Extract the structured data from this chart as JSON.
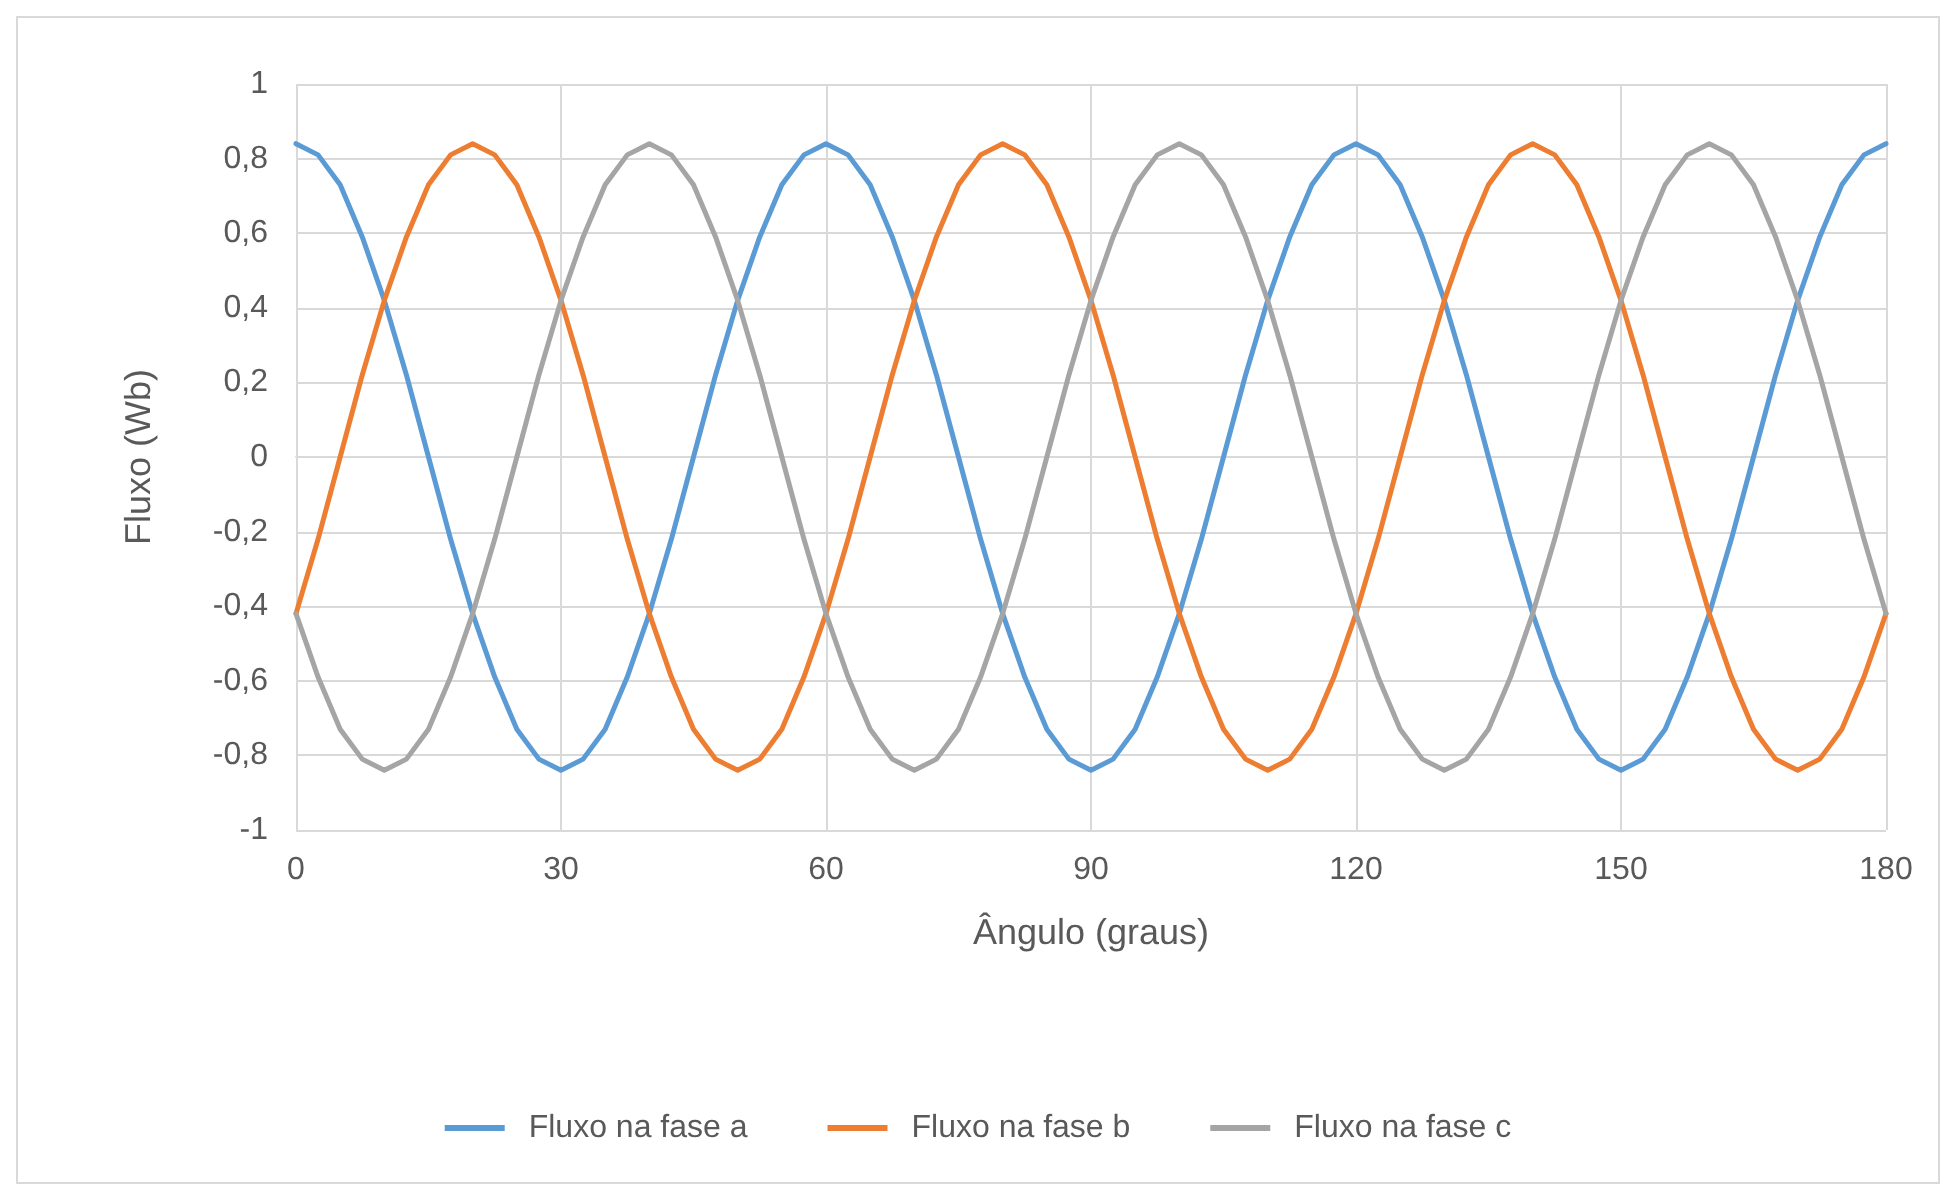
{
  "chart_data": {
    "type": "line",
    "xlabel": "Ângulo (graus)",
    "ylabel": "Fluxo (Wb)",
    "x": [
      0,
      2.5,
      5,
      7.5,
      10,
      12.5,
      15,
      17.5,
      20,
      22.5,
      25,
      27.5,
      30,
      32.5,
      35,
      37.5,
      40,
      42.5,
      45,
      47.5,
      50,
      52.5,
      55,
      57.5,
      60,
      62.5,
      65,
      67.5,
      70,
      72.5,
      75,
      77.5,
      80,
      82.5,
      85,
      87.5,
      90,
      92.5,
      95,
      97.5,
      100,
      102.5,
      105,
      107.5,
      110,
      112.5,
      115,
      117.5,
      120,
      122.5,
      125,
      127.5,
      130,
      132.5,
      135,
      137.5,
      140,
      142.5,
      145,
      147.5,
      150,
      152.5,
      155,
      157.5,
      160,
      162.5,
      165,
      167.5,
      170,
      172.5,
      175,
      177.5,
      180
    ],
    "series": [
      {
        "name": "Fluxo na fase a",
        "color": "#5b9bd5",
        "values": [
          0.84,
          0.81,
          0.73,
          0.59,
          0.42,
          0.22,
          0,
          -0.22,
          -0.42,
          -0.59,
          -0.73,
          -0.81,
          -0.84,
          -0.81,
          -0.73,
          -0.59,
          -0.42,
          -0.22,
          0,
          0.22,
          0.42,
          0.59,
          0.73,
          0.81,
          0.84,
          0.81,
          0.73,
          0.59,
          0.42,
          0.22,
          0,
          -0.22,
          -0.42,
          -0.59,
          -0.73,
          -0.81,
          -0.84,
          -0.81,
          -0.73,
          -0.59,
          -0.42,
          -0.22,
          0,
          0.22,
          0.42,
          0.59,
          0.73,
          0.81,
          0.84,
          0.81,
          0.73,
          0.59,
          0.42,
          0.22,
          0,
          -0.22,
          -0.42,
          -0.59,
          -0.73,
          -0.81,
          -0.84,
          -0.81,
          -0.73,
          -0.59,
          -0.42,
          -0.22,
          0,
          0.22,
          0.42,
          0.59,
          0.73,
          0.81,
          0.84
        ]
      },
      {
        "name": "Fluxo na fase b",
        "color": "#ed7d31",
        "values": [
          -0.42,
          -0.22,
          0,
          0.22,
          0.42,
          0.59,
          0.73,
          0.81,
          0.84,
          0.81,
          0.73,
          0.59,
          0.42,
          0.22,
          0,
          -0.22,
          -0.42,
          -0.59,
          -0.73,
          -0.81,
          -0.84,
          -0.81,
          -0.73,
          -0.59,
          -0.42,
          -0.22,
          0,
          0.22,
          0.42,
          0.59,
          0.73,
          0.81,
          0.84,
          0.81,
          0.73,
          0.59,
          0.42,
          0.22,
          0,
          -0.22,
          -0.42,
          -0.59,
          -0.73,
          -0.81,
          -0.84,
          -0.81,
          -0.73,
          -0.59,
          -0.42,
          -0.22,
          0,
          0.22,
          0.42,
          0.59,
          0.73,
          0.81,
          0.84,
          0.81,
          0.73,
          0.59,
          0.42,
          0.22,
          0,
          -0.22,
          -0.42,
          -0.59,
          -0.73,
          -0.81,
          -0.84,
          -0.81,
          -0.73,
          -0.59,
          -0.42
        ]
      },
      {
        "name": "Fluxo na fase c",
        "color": "#a5a5a5",
        "values": [
          -0.42,
          -0.59,
          -0.73,
          -0.81,
          -0.84,
          -0.81,
          -0.73,
          -0.59,
          -0.42,
          -0.22,
          0,
          0.22,
          0.42,
          0.59,
          0.73,
          0.81,
          0.84,
          0.81,
          0.73,
          0.59,
          0.42,
          0.22,
          0,
          -0.22,
          -0.42,
          -0.59,
          -0.73,
          -0.81,
          -0.84,
          -0.81,
          -0.73,
          -0.59,
          -0.42,
          -0.22,
          0,
          0.22,
          0.42,
          0.59,
          0.73,
          0.81,
          0.84,
          0.81,
          0.73,
          0.59,
          0.42,
          0.22,
          0,
          -0.22,
          -0.42,
          -0.59,
          -0.73,
          -0.81,
          -0.84,
          -0.81,
          -0.73,
          -0.59,
          -0.42,
          -0.22,
          0,
          0.22,
          0.42,
          0.59,
          0.73,
          0.81,
          0.84,
          0.81,
          0.73,
          0.59,
          0.42,
          0.22,
          0,
          -0.22,
          -0.42
        ]
      }
    ],
    "xlim": [
      0,
      180
    ],
    "xticks": [
      0,
      30,
      60,
      90,
      120,
      150,
      180
    ],
    "ylim": [
      -1,
      1
    ],
    "yticks": [
      -1,
      {
        "value": -0.8,
        "label": "-0,8"
      },
      {
        "value": -0.6,
        "label": "-0,6"
      },
      {
        "value": -0.4,
        "label": "-0,4"
      },
      {
        "value": -0.2,
        "label": "-0,2"
      },
      0,
      {
        "value": 0.2,
        "label": "0,2"
      },
      {
        "value": 0.4,
        "label": "0,4"
      },
      {
        "value": 0.6,
        "label": "0,6"
      },
      {
        "value": 0.8,
        "label": "0,8"
      },
      1
    ],
    "grid": true,
    "legend": "bottom",
    "marker": "none",
    "line_style": "solid"
  }
}
